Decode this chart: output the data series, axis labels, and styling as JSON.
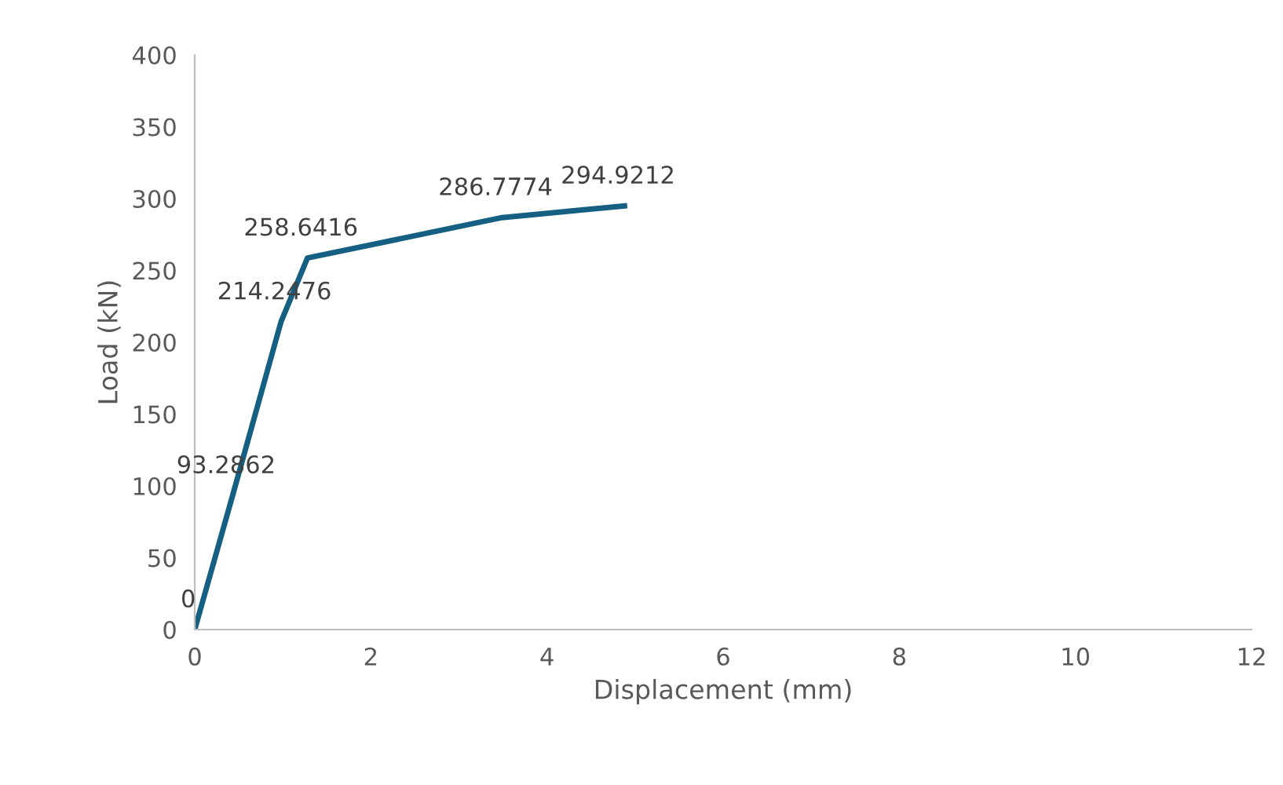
{
  "chart_data": {
    "type": "line",
    "xlabel": "Displacement (mm)",
    "ylabel": "Load (kN)",
    "x": [
      0,
      0.43,
      0.98,
      1.28,
      3.49,
      4.88
    ],
    "series": [
      {
        "color": "#156082",
        "values": [
          0,
          93.2862,
          214.2476,
          258.6416,
          286.7774,
          294.9212
        ]
      }
    ],
    "xlim": [
      0,
      12
    ],
    "xticks": [
      0,
      2,
      4,
      6,
      8,
      10,
      12
    ],
    "ylim": [
      0,
      400
    ],
    "yticks": [
      0,
      50,
      100,
      150,
      200,
      250,
      300,
      350,
      400
    ],
    "grid": false,
    "marker": "none",
    "line_style": "solid",
    "data_labels": true
  }
}
